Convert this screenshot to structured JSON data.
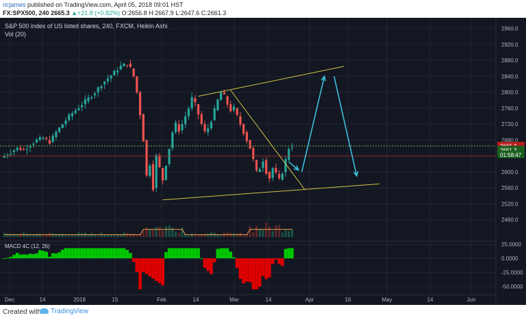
{
  "header": {
    "author": "ricjames",
    "published": "published on TradingView.com, April 05, 2018 09:01 HST",
    "symbol": "FX:SPX500, 240",
    "last": "2665.3",
    "change": "+21.8 (+0.82%)",
    "open_label": "O:",
    "open": "2656.8",
    "high_label": "H:",
    "high": "2667.9",
    "low_label": "L:",
    "low": "2647.6",
    "close_label": "C:",
    "close": "2661.3"
  },
  "legend": {
    "title": "S&P 500 index of US listed shares, 240, FXCM, Heikin Ashi",
    "volume": "Vol (20)"
  },
  "macd_label": "MACD 4C (12, 26)",
  "footer": {
    "made_with": "Created with",
    "brand": "TradingView"
  },
  "colors": {
    "background": "#131722",
    "grid": "#232733",
    "up": "#26a69a",
    "down": "#ef5350",
    "macd_pos": "#00c800",
    "macd_neg": "#e00000",
    "trendline": "#d4c545",
    "arrow": "#3dc9e6",
    "volume_ma": "#f0a24a",
    "price_badge": "#b71c1c",
    "timer_badge": "#1b5e20",
    "price_line": "#c62828",
    "open_line": "#7cb342"
  },
  "chart_data": {
    "type": "candlestick",
    "title": "S&P 500 index of US listed shares, 240, FXCM, Heikin Ashi",
    "y_axis": {
      "ylim": [
        2440,
        2980
      ],
      "ticks": [
        "2960.0",
        "2920.0",
        "2880.0",
        "2840.0",
        "2800.0",
        "2760.0",
        "2720.0",
        "2680.0",
        "2640.0",
        "2600.0",
        "2560.0",
        "2520.0",
        "2480.0"
      ]
    },
    "x_axis": {
      "ticks": [
        "Dec",
        "14",
        "2018",
        "15",
        "Feb",
        "14",
        "Mar",
        "14",
        "Apr",
        "16",
        "May",
        "14",
        "Jun"
      ]
    },
    "price_labels": {
      "current": "2665.3",
      "close": "2661.3",
      "countdown": "01:58:47"
    },
    "anchors": [
      [
        0,
        2640
      ],
      [
        2,
        2650
      ],
      [
        4,
        2660
      ],
      [
        6,
        2655
      ],
      [
        8,
        2668
      ],
      [
        10,
        2680
      ],
      [
        12,
        2685
      ],
      [
        14,
        2675
      ],
      [
        16,
        2700
      ],
      [
        18,
        2720
      ],
      [
        20,
        2740
      ],
      [
        22,
        2755
      ],
      [
        24,
        2770
      ],
      [
        26,
        2785
      ],
      [
        28,
        2800
      ],
      [
        30,
        2820
      ],
      [
        32,
        2835
      ],
      [
        34,
        2850
      ],
      [
        36,
        2865
      ],
      [
        38,
        2872
      ],
      [
        39,
        2860
      ],
      [
        40,
        2840
      ],
      [
        41,
        2800
      ],
      [
        42,
        2745
      ],
      [
        43,
        2680
      ],
      [
        44,
        2590
      ],
      [
        45,
        2620
      ],
      [
        46,
        2560
      ],
      [
        47,
        2640
      ],
      [
        48,
        2610
      ],
      [
        49,
        2580
      ],
      [
        50,
        2620
      ],
      [
        51,
        2660
      ],
      [
        52,
        2700
      ],
      [
        53,
        2720
      ],
      [
        54,
        2705
      ],
      [
        55,
        2720
      ],
      [
        56,
        2740
      ],
      [
        57,
        2760
      ],
      [
        58,
        2785
      ],
      [
        59,
        2770
      ],
      [
        60,
        2745
      ],
      [
        61,
        2720
      ],
      [
        62,
        2700
      ],
      [
        63,
        2710
      ],
      [
        64,
        2730
      ],
      [
        65,
        2755
      ],
      [
        66,
        2780
      ],
      [
        67,
        2800
      ],
      [
        68,
        2790
      ],
      [
        69,
        2770
      ],
      [
        70,
        2755
      ],
      [
        71,
        2760
      ],
      [
        72,
        2740
      ],
      [
        73,
        2720
      ],
      [
        74,
        2700
      ],
      [
        75,
        2680
      ],
      [
        76,
        2660
      ],
      [
        77,
        2630
      ],
      [
        78,
        2600
      ],
      [
        79,
        2610
      ],
      [
        80,
        2630
      ],
      [
        81,
        2600
      ],
      [
        82,
        2585
      ],
      [
        83,
        2610
      ],
      [
        84,
        2595
      ],
      [
        85,
        2580
      ],
      [
        86,
        2600
      ],
      [
        87,
        2630
      ],
      [
        88,
        2660
      ],
      [
        89,
        2665
      ]
    ],
    "n_candles": 90,
    "volume_scale": [
      0,
      100
    ],
    "macd": {
      "ylim": [
        -62,
        28
      ],
      "ticks": [
        "25.0000",
        "0.0000",
        "-25.0000",
        "-50.0000"
      ]
    },
    "annotations": {
      "trendlines": [
        {
          "from": [
            60,
            2790
          ],
          "to": [
            105,
            2865
          ]
        },
        {
          "from": [
            49,
            2530
          ],
          "to": [
            116,
            2570
          ]
        },
        {
          "from": [
            70,
            2805
          ],
          "to": [
            93,
            2555
          ]
        }
      ],
      "arrows": [
        {
          "from": [
            88,
            2625
          ],
          "to": [
            91,
            2605
          ]
        },
        {
          "from": [
            92,
            2600
          ],
          "to": [
            99,
            2840
          ]
        },
        {
          "from": [
            102,
            2840
          ],
          "to": [
            109,
            2590
          ]
        }
      ]
    }
  }
}
